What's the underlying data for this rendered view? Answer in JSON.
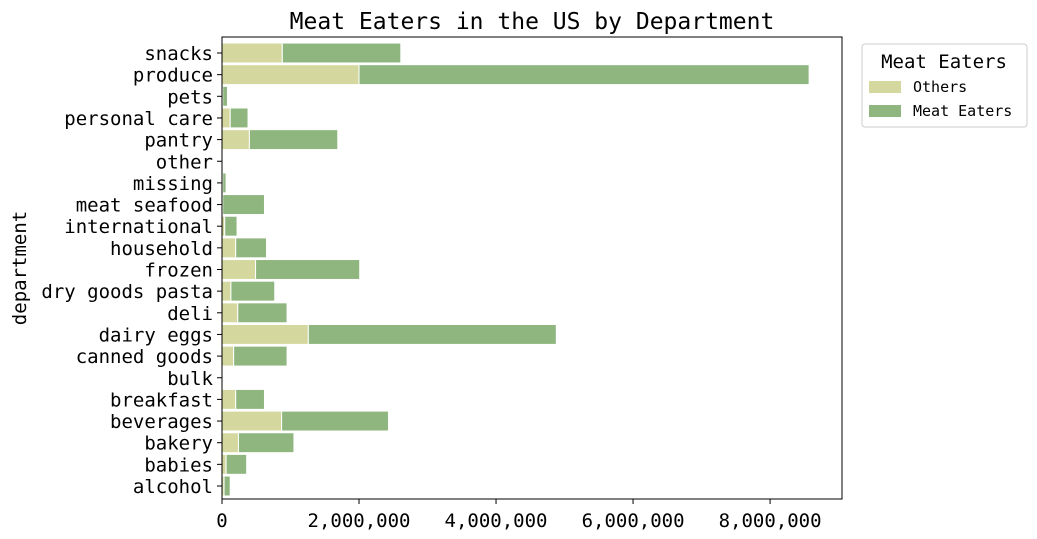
{
  "chart_data": {
    "type": "bar",
    "orientation": "horizontal",
    "stacked": true,
    "title": "Meat Eaters in the US by Department",
    "xlabel": "",
    "ylabel": "department",
    "xlim": [
      0,
      9050000
    ],
    "xticks": [
      0,
      2000000,
      4000000,
      6000000,
      8000000
    ],
    "xtick_labels": [
      "0",
      "2,000,000",
      "4,000,000",
      "6,000,000",
      "8,000,000"
    ],
    "grid": false,
    "legend": {
      "title": "Meat Eaters",
      "position": "top-right, outside"
    },
    "categories": [
      "snacks",
      "produce",
      "pets",
      "personal care",
      "pantry",
      "other",
      "missing",
      "meat seafood",
      "international",
      "household",
      "frozen",
      "dry goods pasta",
      "deli",
      "dairy eggs",
      "canned goods",
      "bulk",
      "breakfast",
      "beverages",
      "bakery",
      "babies",
      "alcohol"
    ],
    "series": [
      {
        "name": "Others",
        "color": "#d4d89f",
        "values": [
          880000,
          2000000,
          10000,
          120000,
          400000,
          2000,
          10000,
          10000,
          40000,
          200000,
          490000,
          130000,
          230000,
          1260000,
          170000,
          1000,
          200000,
          870000,
          240000,
          60000,
          30000
        ]
      },
      {
        "name": "Meat Eaters",
        "color": "#8fb67f",
        "values": [
          1730000,
          6570000,
          70000,
          260000,
          1290000,
          4000,
          50000,
          610000,
          180000,
          450000,
          1520000,
          640000,
          720000,
          3620000,
          780000,
          4000,
          420000,
          1560000,
          810000,
          300000,
          90000
        ]
      }
    ]
  }
}
